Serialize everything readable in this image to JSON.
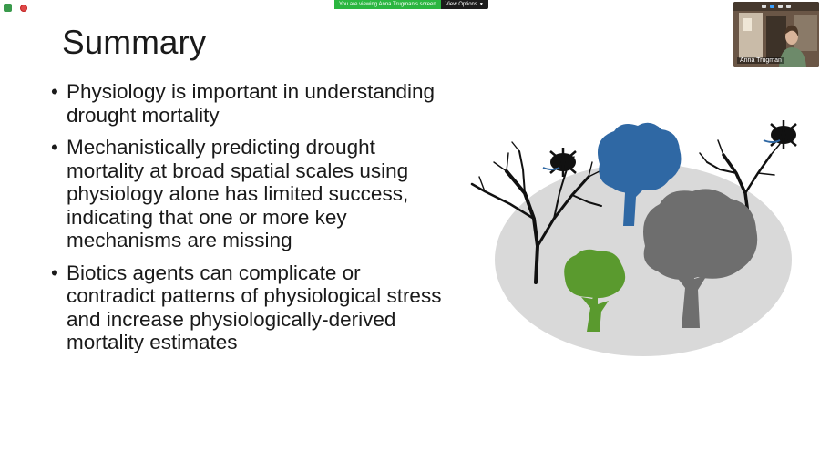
{
  "share_bar": {
    "banner": "You are viewing Anna Trugman's screen",
    "view_options": "View Options",
    "chevron_icon": "chevron-down-icon"
  },
  "video": {
    "participant_name": "Anna Trugman"
  },
  "slide": {
    "title": "Summary",
    "bullets": [
      "Physiology is important in understanding drought mortality",
      "Mechanistically predicting drought mortality at broad spatial scales using physiology alone has limited success, indicating that one or more key mechanisms are missing",
      "Biotics agents can complicate or contradict patterns of physiological stress and increase physiologically-derived mortality estimates"
    ]
  },
  "colors": {
    "banner_green": "#2bb640",
    "tree_blue": "#2f68a4",
    "tree_gray": "#6e6e6e",
    "tree_green": "#5a9a2e",
    "ellipse": "#d9d9d9"
  }
}
